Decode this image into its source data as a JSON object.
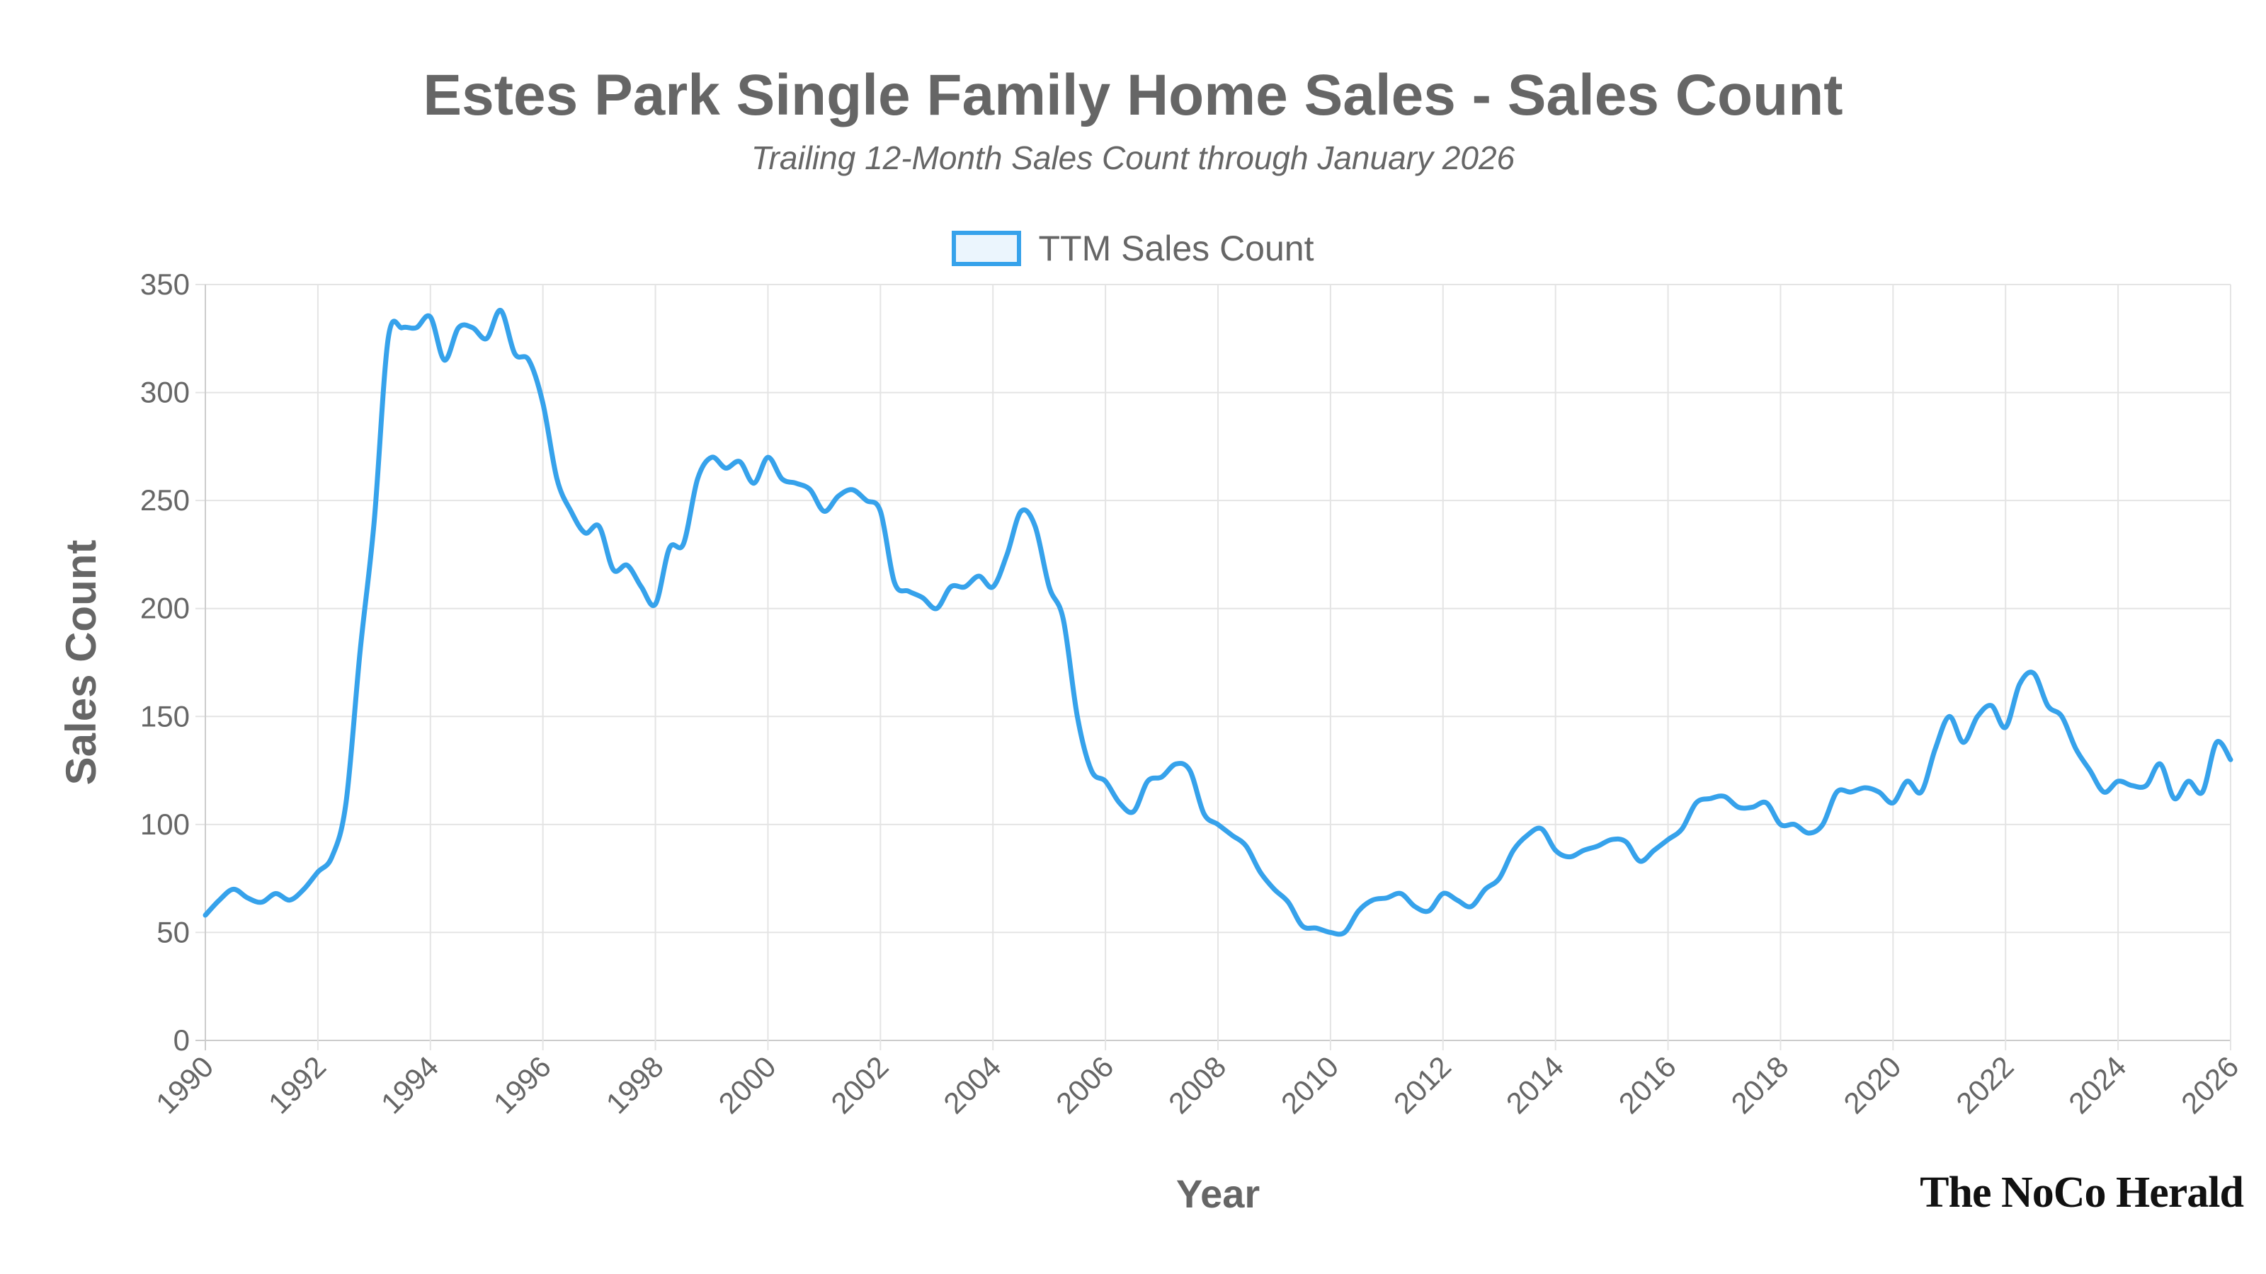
{
  "chart_data": {
    "type": "line",
    "title": "Estes Park Single Family Home Sales - Sales Count",
    "subtitle": "Trailing 12-Month Sales Count through January 2026",
    "xlabel": "Year",
    "ylabel": "Sales Count",
    "ylim": [
      0,
      350
    ],
    "xlim": [
      "1990-01",
      "2026-01"
    ],
    "yticks": [
      0,
      50,
      100,
      150,
      200,
      250,
      300,
      350
    ],
    "xticks": [
      "1990",
      "1992",
      "1994",
      "1996",
      "1998",
      "2000",
      "2002",
      "2004",
      "2006",
      "2008",
      "2010",
      "2012",
      "2014",
      "2016",
      "2018",
      "2020",
      "2022",
      "2024",
      "2026"
    ],
    "grid": true,
    "legend_placement": "top",
    "series": [
      {
        "name": "TTM Sales Count",
        "color": "#36a2eb",
        "fill": "#ebf5fd",
        "x_start": "1990-01",
        "x_step_months": 3,
        "values": [
          58,
          65,
          70,
          66,
          64,
          68,
          65,
          70,
          78,
          85,
          110,
          180,
          240,
          325,
          330,
          330,
          335,
          315,
          330,
          330,
          325,
          338,
          318,
          315,
          295,
          260,
          245,
          235,
          238,
          218,
          220,
          210,
          202,
          228,
          230,
          260,
          270,
          265,
          268,
          258,
          270,
          260,
          258,
          255,
          245,
          252,
          255,
          250,
          245,
          212,
          208,
          205,
          200,
          210,
          210,
          215,
          210,
          225,
          245,
          238,
          210,
          195,
          150,
          125,
          120,
          110,
          106,
          120,
          122,
          128,
          125,
          105,
          100,
          95,
          90,
          78,
          70,
          64,
          53,
          52,
          50,
          50,
          60,
          65,
          66,
          68,
          62,
          60,
          68,
          65,
          62,
          70,
          75,
          88,
          95,
          98,
          88,
          85,
          88,
          90,
          93,
          92,
          83,
          88,
          93,
          98,
          110,
          112,
          113,
          108,
          108,
          110,
          100,
          100,
          96,
          100,
          115,
          115,
          117,
          115,
          110,
          120,
          115,
          135,
          150,
          138,
          150,
          155,
          145,
          165,
          170,
          155,
          150,
          135,
          125,
          115,
          120,
          118,
          118,
          128,
          112,
          120,
          115,
          138,
          130
        ]
      }
    ]
  },
  "branding": {
    "logo_text": "The NoCo Herald"
  }
}
